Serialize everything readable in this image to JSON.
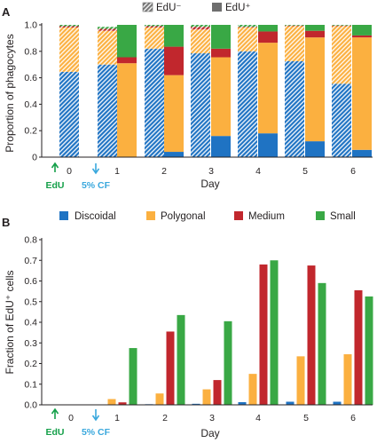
{
  "colors": {
    "discoidal": "#1f73c3",
    "polygonal": "#fbb040",
    "medium": "#c1272d",
    "small": "#39a845",
    "annotation_edu": "#15a04a",
    "annotation_cf": "#3aa8dd",
    "axis": "#231f20"
  },
  "annotations": {
    "edu_label": "EdU",
    "cf_label": "5% CF"
  },
  "chart_data": [
    {
      "type": "bar",
      "stacked": true,
      "panel_label": "A",
      "xlabel": "Day",
      "ylabel": "Proportion of phagocytes",
      "ylim": [
        0,
        1.0
      ],
      "yticks": [
        "0",
        "0.2",
        "0.4",
        "0.6",
        "0.8",
        "1.0"
      ],
      "legend": {
        "placement": "top",
        "entries": [
          "EdU⁻",
          "EdU⁺"
        ]
      },
      "categories": [
        "0",
        "1",
        "2",
        "3",
        "4",
        "5",
        "6"
      ],
      "series": [
        {
          "key": "discoidal",
          "edu": "neg",
          "values": {
            "0": 0.645,
            "1": 0.7,
            "2": 0.82,
            "3": 0.785,
            "4": 0.8,
            "5": 0.725,
            "6": 0.555
          }
        },
        {
          "key": "polygonal",
          "edu": "neg",
          "values": {
            "0": 0.335,
            "1": 0.255,
            "2": 0.16,
            "3": 0.18,
            "4": 0.18,
            "5": 0.265,
            "6": 0.435
          }
        },
        {
          "key": "medium",
          "edu": "neg",
          "values": {
            "0": 0.01,
            "1": 0.015,
            "2": 0.01,
            "3": 0.02,
            "4": 0.005,
            "5": 0.005,
            "6": 0.005
          }
        },
        {
          "key": "small",
          "edu": "neg",
          "values": {
            "0": 0.01,
            "1": 0.015,
            "2": 0.01,
            "3": 0.015,
            "4": 0.015,
            "5": 0.005,
            "6": 0.005
          }
        },
        {
          "key": "discoidal",
          "edu": "pos",
          "values": {
            "1": 0.0,
            "2": 0.04,
            "3": 0.16,
            "4": 0.18,
            "5": 0.12,
            "6": 0.055
          }
        },
        {
          "key": "polygonal",
          "edu": "pos",
          "values": {
            "1": 0.71,
            "2": 0.58,
            "3": 0.595,
            "4": 0.685,
            "5": 0.785,
            "6": 0.85
          }
        },
        {
          "key": "medium",
          "edu": "pos",
          "values": {
            "1": 0.045,
            "2": 0.215,
            "3": 0.065,
            "4": 0.085,
            "5": 0.05,
            "6": 0.015
          }
        },
        {
          "key": "small",
          "edu": "pos",
          "values": {
            "1": 0.245,
            "2": 0.165,
            "3": 0.18,
            "4": 0.05,
            "5": 0.045,
            "6": 0.08
          }
        }
      ]
    },
    {
      "type": "bar",
      "panel_label": "B",
      "xlabel": "Day",
      "ylabel": "Fraction of EdU⁺ cells",
      "ylim": [
        0,
        0.8
      ],
      "yticks": [
        "0.0",
        "0.1",
        "0.2",
        "0.3",
        "0.4",
        "0.5",
        "0.6",
        "0.7",
        "0.8"
      ],
      "legend": {
        "placement": "top",
        "entries": [
          "Discoidal",
          "Polygonal",
          "Medium",
          "Small"
        ]
      },
      "categories": [
        "0",
        "1",
        "2",
        "3",
        "4",
        "5",
        "6"
      ],
      "series": [
        {
          "name": "Discoidal",
          "key": "discoidal",
          "values": [
            0.0,
            0.0,
            0.003,
            0.005,
            0.013,
            0.015,
            0.015
          ]
        },
        {
          "name": "Polygonal",
          "key": "polygonal",
          "values": [
            0.0,
            0.028,
            0.055,
            0.075,
            0.15,
            0.235,
            0.245
          ]
        },
        {
          "name": "Medium",
          "key": "medium",
          "values": [
            0.0,
            0.012,
            0.355,
            0.12,
            0.68,
            0.675,
            0.555
          ]
        },
        {
          "name": "Small",
          "key": "small",
          "values": [
            0.0,
            0.275,
            0.435,
            0.405,
            0.7,
            0.59,
            0.525
          ]
        }
      ]
    }
  ]
}
